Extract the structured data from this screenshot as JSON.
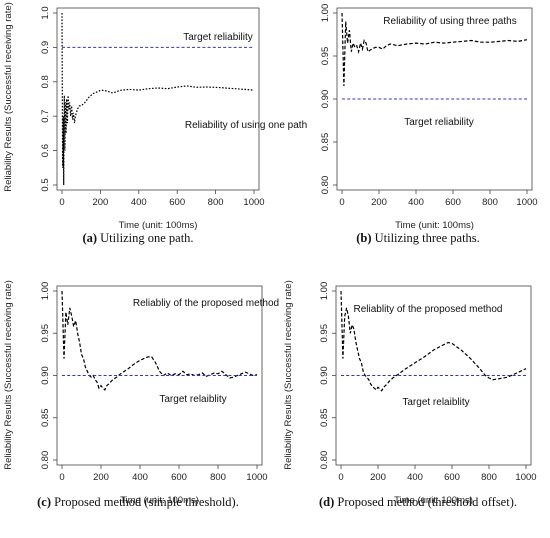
{
  "chart_data": [
    {
      "type": "line",
      "caption_label": "(a)",
      "caption_text": "Utilizing one path.",
      "xlabel": "Time (unit: 100ms)",
      "ylabel": "Reliability Results (Successful receiving rate)",
      "xlim": [
        0,
        1000
      ],
      "ylim": [
        0.5,
        1.0
      ],
      "xticks": [
        0,
        200,
        400,
        600,
        800,
        1000
      ],
      "yticks": [
        0.5,
        0.6,
        0.7,
        0.8,
        0.9,
        1.0
      ],
      "ytick_labels": [
        "0.5",
        "0.6",
        "0.7",
        "0.8",
        "0.9",
        "1.0"
      ],
      "annotations": [
        "Target reliability",
        "Reliability of using one path"
      ],
      "series": [
        {
          "style": "dotted",
          "color": "#000000",
          "x": [
            0,
            3,
            6,
            9,
            12,
            15,
            18,
            21,
            24,
            28,
            32,
            36,
            40,
            45,
            50,
            55,
            60,
            65,
            70,
            80,
            90,
            100,
            110,
            120,
            140,
            160,
            180,
            200,
            220,
            240,
            260,
            280,
            300,
            350,
            400,
            450,
            500,
            550,
            600,
            650,
            700,
            750,
            800,
            850,
            900,
            950,
            1000
          ],
          "y": [
            1.0,
            0.55,
            0.7,
            0.5,
            0.76,
            0.6,
            0.74,
            0.65,
            0.75,
            0.68,
            0.76,
            0.72,
            0.74,
            0.7,
            0.73,
            0.69,
            0.71,
            0.68,
            0.7,
            0.72,
            0.73,
            0.73,
            0.735,
            0.74,
            0.755,
            0.765,
            0.77,
            0.775,
            0.775,
            0.772,
            0.768,
            0.77,
            0.775,
            0.778,
            0.776,
            0.78,
            0.782,
            0.78,
            0.785,
            0.788,
            0.784,
            0.785,
            0.784,
            0.782,
            0.78,
            0.778,
            0.776
          ]
        },
        {
          "style": "dashed",
          "color": "#3333cc",
          "x": [
            0,
            1000
          ],
          "y": [
            0.9,
            0.9
          ]
        }
      ]
    },
    {
      "type": "line",
      "caption_label": "(b)",
      "caption_text": "Utilizing three paths.",
      "xlabel": "Time (unit: 100ms)",
      "ylabel": "",
      "xlim": [
        0,
        1000
      ],
      "ylim": [
        0.8,
        1.0
      ],
      "xticks": [
        0,
        200,
        400,
        600,
        800,
        1000
      ],
      "yticks": [
        0.8,
        0.85,
        0.9,
        0.95,
        1.0
      ],
      "ytick_labels": [
        "0.80",
        "0.85",
        "0.90",
        "0.95",
        "1.00"
      ],
      "annotations": [
        "Reliability of using three paths",
        "Target reliability"
      ],
      "series": [
        {
          "style": "dashed",
          "color": "#000000",
          "x": [
            0,
            10,
            20,
            30,
            40,
            50,
            60,
            70,
            80,
            90,
            100,
            110,
            120,
            130,
            140,
            160,
            180,
            200,
            220,
            240,
            260,
            280,
            300,
            350,
            400,
            450,
            500,
            550,
            600,
            650,
            700,
            750,
            800,
            850,
            900,
            950,
            1000
          ],
          "y": [
            1.0,
            0.915,
            0.99,
            0.965,
            0.98,
            0.955,
            0.965,
            0.96,
            0.962,
            0.955,
            0.965,
            0.958,
            0.968,
            0.965,
            0.955,
            0.958,
            0.96,
            0.96,
            0.958,
            0.962,
            0.964,
            0.963,
            0.962,
            0.964,
            0.965,
            0.964,
            0.966,
            0.965,
            0.966,
            0.967,
            0.968,
            0.966,
            0.966,
            0.967,
            0.968,
            0.967,
            0.969
          ]
        },
        {
          "style": "dashed",
          "color": "#3333cc",
          "x": [
            0,
            1000
          ],
          "y": [
            0.9,
            0.9
          ]
        }
      ]
    },
    {
      "type": "line",
      "caption_label": "(c)",
      "caption_text": "Proposed method (simple threshold).",
      "xlabel": "Time (unit: 100ms)",
      "ylabel": "Reliability Results (Successful receiving rate)",
      "xlim": [
        0,
        1000
      ],
      "ylim": [
        0.8,
        1.0
      ],
      "xticks": [
        0,
        200,
        400,
        600,
        800,
        1000
      ],
      "yticks": [
        0.8,
        0.85,
        0.9,
        0.95,
        1.0
      ],
      "ytick_labels": [
        "0.80",
        "0.85",
        "0.90",
        "0.95",
        "1.00"
      ],
      "annotations": [
        "Reliabliy of the proposed method",
        "Target relaiblity"
      ],
      "series": [
        {
          "style": "dashed",
          "color": "#000000",
          "x": [
            0,
            10,
            20,
            30,
            40,
            50,
            60,
            70,
            80,
            90,
            100,
            110,
            120,
            130,
            140,
            150,
            160,
            170,
            180,
            190,
            200,
            210,
            220,
            230,
            240,
            260,
            280,
            300,
            320,
            340,
            360,
            380,
            400,
            420,
            440,
            460,
            480,
            500,
            520,
            540,
            560,
            580,
            600,
            620,
            640,
            660,
            680,
            700,
            720,
            740,
            760,
            780,
            800,
            820,
            840,
            860,
            880,
            900,
            920,
            940,
            960,
            980,
            1000
          ],
          "y": [
            1.0,
            0.92,
            0.975,
            0.96,
            0.98,
            0.97,
            0.958,
            0.965,
            0.95,
            0.94,
            0.925,
            0.92,
            0.91,
            0.905,
            0.9,
            0.898,
            0.9,
            0.895,
            0.892,
            0.885,
            0.888,
            0.885,
            0.883,
            0.888,
            0.89,
            0.895,
            0.898,
            0.902,
            0.905,
            0.908,
            0.912,
            0.915,
            0.918,
            0.92,
            0.922,
            0.922,
            0.915,
            0.905,
            0.9,
            0.903,
            0.9,
            0.902,
            0.901,
            0.905,
            0.901,
            0.902,
            0.9,
            0.901,
            0.903,
            0.899,
            0.901,
            0.903,
            0.902,
            0.905,
            0.901,
            0.897,
            0.898,
            0.9,
            0.902,
            0.904,
            0.902,
            0.9,
            0.901
          ]
        },
        {
          "style": "dashed",
          "color": "#3333cc",
          "x": [
            0,
            1000
          ],
          "y": [
            0.9,
            0.9
          ]
        }
      ]
    },
    {
      "type": "line",
      "caption_label": "(d)",
      "caption_text": "Proposed method (threshold offset).",
      "xlabel": "Time (unit: 100ms)",
      "ylabel": "Reliability Results (Successful receiving rate)",
      "xlim": [
        0,
        1000
      ],
      "ylim": [
        0.8,
        1.0
      ],
      "xticks": [
        0,
        200,
        400,
        600,
        800,
        1000
      ],
      "yticks": [
        0.8,
        0.85,
        0.9,
        0.95,
        1.0
      ],
      "ytick_labels": [
        "0.80",
        "0.85",
        "0.90",
        "0.95",
        "1.00"
      ],
      "annotations": [
        "Reliablity of the proposed method",
        "Target relaiblity"
      ],
      "series": [
        {
          "style": "dashed",
          "color": "#000000",
          "x": [
            0,
            10,
            20,
            30,
            40,
            50,
            60,
            70,
            80,
            90,
            100,
            110,
            120,
            130,
            140,
            150,
            160,
            170,
            180,
            190,
            200,
            210,
            220,
            230,
            240,
            250,
            260,
            280,
            300,
            350,
            400,
            450,
            500,
            550,
            580,
            600,
            650,
            700,
            750,
            780,
            800,
            820,
            850,
            900,
            950,
            1000
          ],
          "y": [
            1.0,
            0.92,
            0.97,
            0.98,
            0.97,
            0.95,
            0.96,
            0.955,
            0.94,
            0.93,
            0.92,
            0.915,
            0.905,
            0.9,
            0.898,
            0.895,
            0.89,
            0.887,
            0.885,
            0.883,
            0.886,
            0.884,
            0.882,
            0.886,
            0.888,
            0.89,
            0.893,
            0.897,
            0.9,
            0.908,
            0.915,
            0.922,
            0.93,
            0.936,
            0.939,
            0.938,
            0.93,
            0.92,
            0.908,
            0.9,
            0.897,
            0.895,
            0.896,
            0.898,
            0.903,
            0.908
          ]
        },
        {
          "style": "dashed",
          "color": "#3333cc",
          "x": [
            0,
            1000
          ],
          "y": [
            0.9,
            0.9
          ]
        }
      ]
    }
  ]
}
